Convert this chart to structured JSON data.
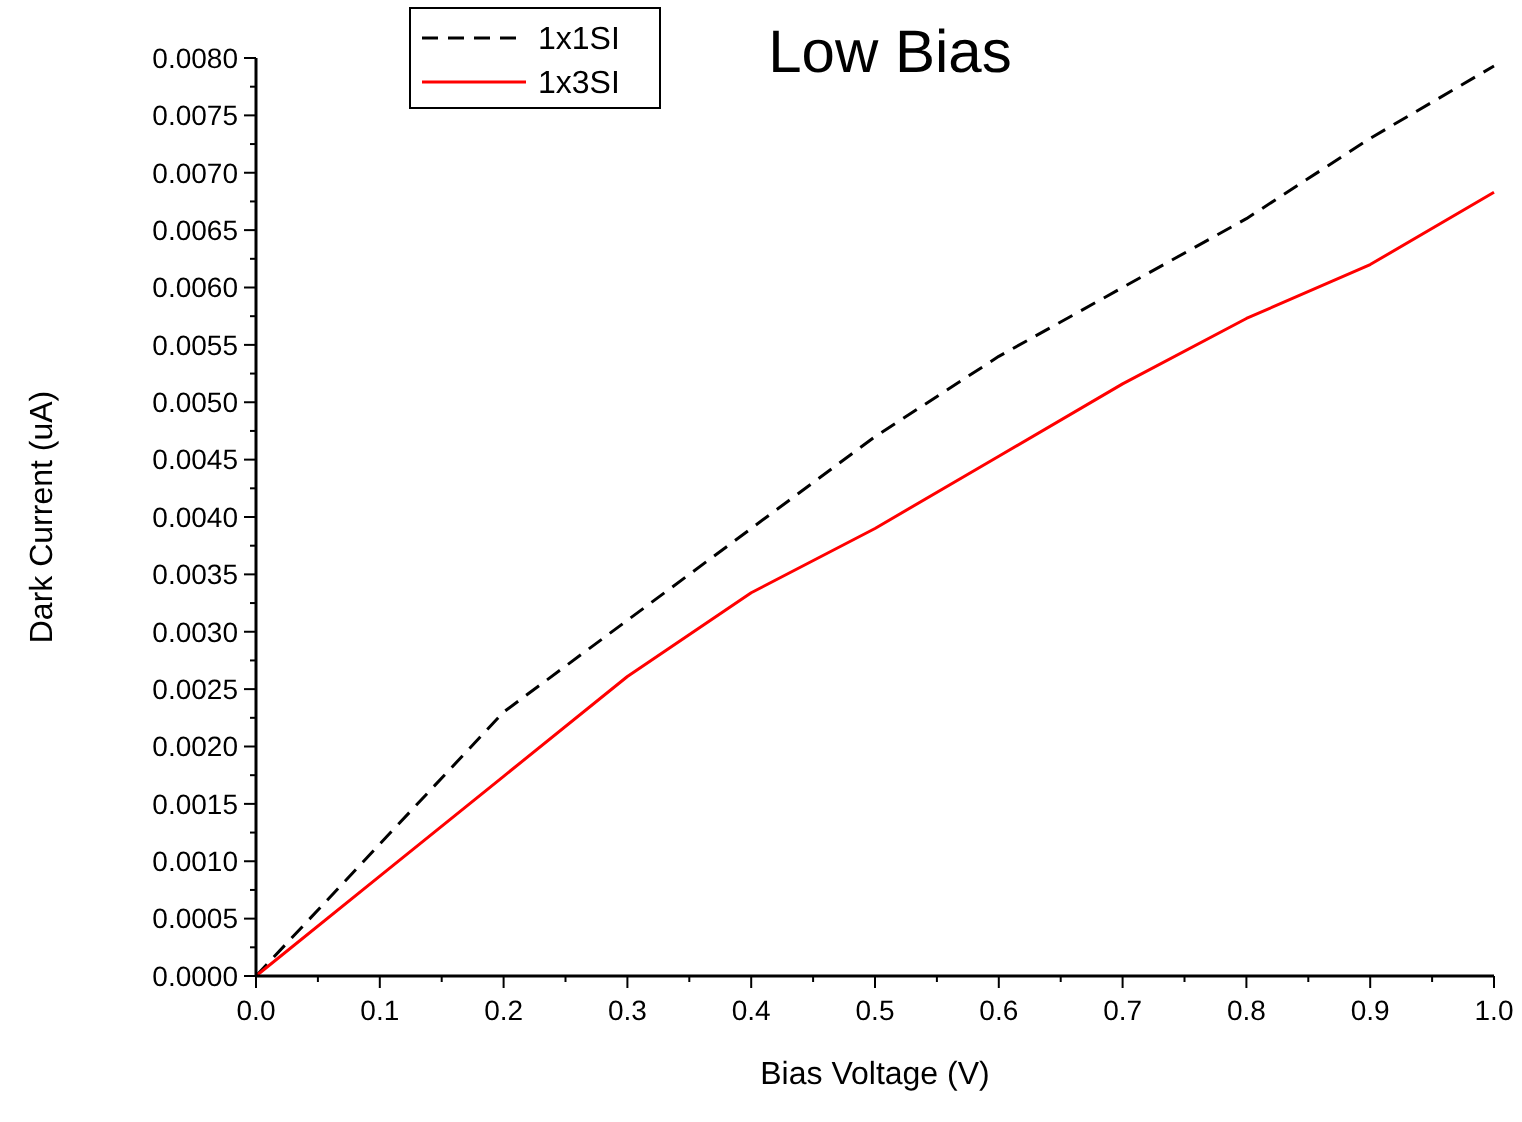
{
  "chart_data": {
    "type": "line",
    "title": "Low Bias",
    "xlabel": "Bias Voltage (V)",
    "ylabel": "Dark Current (uA)",
    "x": [
      0,
      0.1,
      0.2,
      0.3,
      0.4,
      0.5,
      0.6,
      0.7,
      0.8,
      0.9,
      1.0
    ],
    "series": [
      {
        "name": "1x1SI",
        "color": "#000000",
        "line_style": "dashed",
        "values": [
          0,
          0.00115,
          0.0023,
          0.0031,
          0.0039,
          0.0047,
          0.0054,
          0.006,
          0.0066,
          0.0073,
          0.00793
        ]
      },
      {
        "name": "1x3SI",
        "color": "#ff0000",
        "line_style": "solid",
        "values": [
          0,
          0.00087,
          0.00174,
          0.00261,
          0.00334,
          0.0039,
          0.00453,
          0.00516,
          0.00573,
          0.0062,
          0.00683
        ]
      }
    ],
    "xlim": [
      0,
      1.0
    ],
    "xticks": [
      {
        "value": 0,
        "label": "0.0"
      },
      {
        "value": 0.1,
        "label": "0.1"
      },
      {
        "value": 0.2,
        "label": "0.2"
      },
      {
        "value": 0.3,
        "label": "0.3"
      },
      {
        "value": 0.4,
        "label": "0.4"
      },
      {
        "value": 0.5,
        "label": "0.5"
      },
      {
        "value": 0.6,
        "label": "0.6"
      },
      {
        "value": 0.7,
        "label": "0.7"
      },
      {
        "value": 0.8,
        "label": "0.8"
      },
      {
        "value": 0.9,
        "label": "0.9"
      },
      {
        "value": 1.0,
        "label": "1.0"
      }
    ],
    "ylim": [
      0,
      0.008
    ],
    "yticks": [
      {
        "value": 0,
        "label": "0.0000"
      },
      {
        "value": 0.0005,
        "label": "0.0005"
      },
      {
        "value": 0.001,
        "label": "0.0010"
      },
      {
        "value": 0.0015,
        "label": "0.0015"
      },
      {
        "value": 0.002,
        "label": "0.0020"
      },
      {
        "value": 0.0025,
        "label": "0.0025"
      },
      {
        "value": 0.003,
        "label": "0.0030"
      },
      {
        "value": 0.0035,
        "label": "0.0035"
      },
      {
        "value": 0.004,
        "label": "0.0040"
      },
      {
        "value": 0.0045,
        "label": "0.0045"
      },
      {
        "value": 0.005,
        "label": "0.0050"
      },
      {
        "value": 0.0055,
        "label": "0.0055"
      },
      {
        "value": 0.006,
        "label": "0.0060"
      },
      {
        "value": 0.0065,
        "label": "0.0065"
      },
      {
        "value": 0.007,
        "label": "0.0070"
      },
      {
        "value": 0.0075,
        "label": "0.0075"
      },
      {
        "value": 0.008,
        "label": "0.0080"
      }
    ],
    "grid": false,
    "legend": "top left",
    "marker": "none"
  }
}
